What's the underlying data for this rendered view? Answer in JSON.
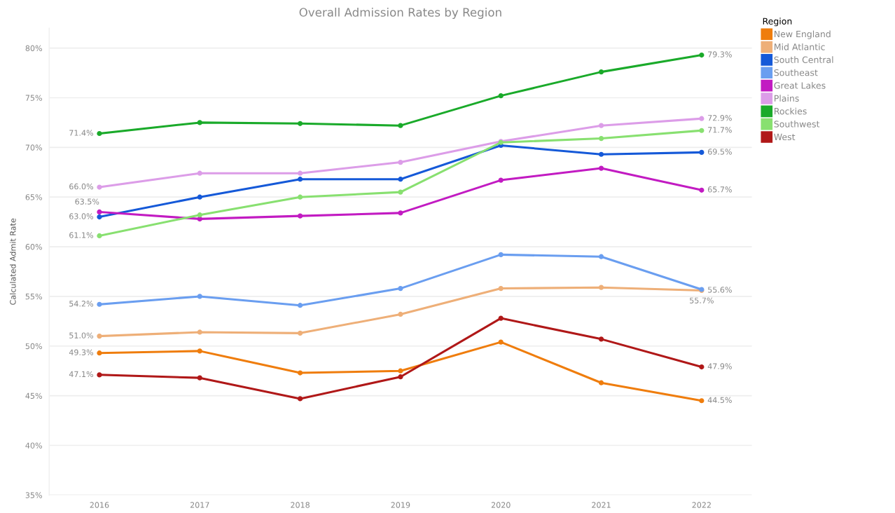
{
  "chart_data": {
    "type": "line",
    "title": "Overall Admission Rates by Region",
    "ylabel": "Calculated Admit Rate",
    "legend_title": "Region",
    "categories": [
      "2016",
      "2017",
      "2018",
      "2019",
      "2020",
      "2021",
      "2022"
    ],
    "ylim": [
      35,
      82
    ],
    "yticks": [
      {
        "value": 35,
        "label": "35%"
      },
      {
        "value": 40,
        "label": "40%"
      },
      {
        "value": 45,
        "label": "45%"
      },
      {
        "value": 50,
        "label": "50%"
      },
      {
        "value": 55,
        "label": "55%"
      },
      {
        "value": 60,
        "label": "60%"
      },
      {
        "value": 65,
        "label": "65%"
      },
      {
        "value": 70,
        "label": "70%"
      },
      {
        "value": 75,
        "label": "75%"
      },
      {
        "value": 80,
        "label": "80%"
      }
    ],
    "grid": "y",
    "legend": "top right",
    "marker": "circle",
    "line_style": "solid",
    "series": [
      {
        "name": "New England",
        "color": "#ef7d0d",
        "values": [
          49.3,
          49.5,
          47.3,
          47.5,
          50.4,
          46.3,
          44.5
        ],
        "value_labels": [
          "49.3%",
          null,
          null,
          null,
          null,
          null,
          "44.5%"
        ]
      },
      {
        "name": "Mid Atlantic",
        "color": "#eeaf78",
        "values": [
          51.0,
          51.4,
          51.3,
          53.2,
          55.8,
          55.9,
          55.6
        ],
        "value_labels": [
          "51.0%",
          null,
          null,
          null,
          null,
          null,
          "55.6%"
        ]
      },
      {
        "name": "South Central",
        "color": "#1559d8",
        "values": [
          63.0,
          65.0,
          66.8,
          66.8,
          70.2,
          69.3,
          69.5
        ],
        "value_labels": [
          "63.0%",
          null,
          null,
          null,
          null,
          null,
          "69.5%"
        ]
      },
      {
        "name": "Southeast",
        "color": "#6a9ef0",
        "values": [
          54.2,
          55.0,
          54.1,
          55.8,
          59.2,
          59.0,
          55.7
        ],
        "value_labels": [
          "54.2%",
          null,
          null,
          null,
          null,
          null,
          "55.7%"
        ]
      },
      {
        "name": "Great Lakes",
        "color": "#c21bc2",
        "values": [
          63.5,
          62.8,
          63.1,
          63.4,
          66.7,
          67.9,
          65.7
        ],
        "value_labels": [
          "63.5%",
          null,
          null,
          null,
          null,
          null,
          "65.7%"
        ]
      },
      {
        "name": "Plains",
        "color": "#dc9de8",
        "values": [
          66.0,
          67.4,
          67.4,
          68.5,
          70.6,
          72.2,
          72.9
        ],
        "value_labels": [
          "66.0%",
          null,
          null,
          null,
          null,
          null,
          "72.9%"
        ]
      },
      {
        "name": "Rockies",
        "color": "#1aaa2a",
        "values": [
          71.4,
          72.5,
          72.4,
          72.2,
          75.2,
          77.6,
          79.3
        ],
        "value_labels": [
          "71.4%",
          null,
          null,
          null,
          null,
          null,
          "79.3%"
        ]
      },
      {
        "name": "Southwest",
        "color": "#88e070",
        "values": [
          61.1,
          63.2,
          65.0,
          65.5,
          70.5,
          70.9,
          71.7
        ],
        "value_labels": [
          "61.1%",
          null,
          null,
          null,
          null,
          null,
          "71.7%"
        ]
      },
      {
        "name": "West",
        "color": "#b01818",
        "values": [
          47.1,
          46.8,
          44.7,
          46.9,
          52.8,
          50.7,
          47.9
        ],
        "value_labels": [
          "47.1%",
          null,
          null,
          null,
          null,
          null,
          "47.9%"
        ]
      }
    ]
  }
}
